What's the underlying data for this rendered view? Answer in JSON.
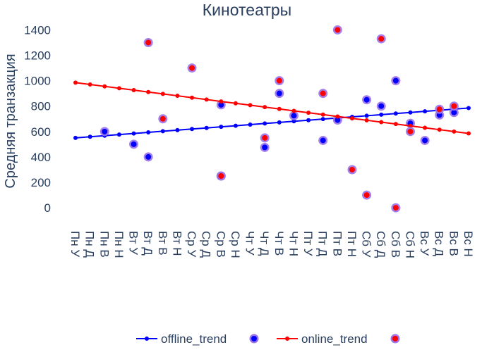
{
  "chart_data": {
    "type": "scatter",
    "title": "Кинотеатры",
    "ylabel": "Средняя транзакция",
    "xlabel": "",
    "ylim": [
      -160,
      1480
    ],
    "y_ticks": [
      0,
      200,
      400,
      600,
      800,
      1000,
      1200,
      1400
    ],
    "categories": [
      "Пн У",
      "Пн Д",
      "Пн В",
      "Пн Н",
      "Вт У",
      "Вт Д",
      "Вт В",
      "Вт Н",
      "Ср У",
      "Ср Д",
      "Ср В",
      "Ср Н",
      "Чт У",
      "Чт Д",
      "Чт В",
      "Чт Н",
      "Пт У",
      "Пт Д",
      "Пт В",
      "Пт Н",
      "Сб У",
      "Сб Д",
      "Сб В",
      "Сб Н",
      "Вс У",
      "Вс Д",
      "Вс В",
      "Вс Н"
    ],
    "grid": false,
    "legend_position": "bottom",
    "series": [
      {
        "name": "offline_trend",
        "kind": "line",
        "color": "#0000ff",
        "start": 550,
        "end": 785
      },
      {
        "name": "",
        "kind": "markers",
        "fill": "#0000ff",
        "ring": "#9b72e8",
        "points": [
          {
            "x": "Пн В",
            "y": 600
          },
          {
            "x": "Вт У",
            "y": 500
          },
          {
            "x": "Вт Д",
            "y": 400
          },
          {
            "x": "Ср В",
            "y": 810
          },
          {
            "x": "Ср В",
            "y": 250
          },
          {
            "x": "Чт Д",
            "y": 475
          },
          {
            "x": "Чт В",
            "y": 900
          },
          {
            "x": "Чт Н",
            "y": 725
          },
          {
            "x": "Пт Д",
            "y": 530
          },
          {
            "x": "Пт В",
            "y": 690
          },
          {
            "x": "Сб У",
            "y": 850
          },
          {
            "x": "Сб Д",
            "y": 800
          },
          {
            "x": "Сб В",
            "y": 1000
          },
          {
            "x": "Сб Н",
            "y": 665
          },
          {
            "x": "Вс У",
            "y": 530
          },
          {
            "x": "Вс Д",
            "y": 730
          },
          {
            "x": "Вс В",
            "y": 750
          }
        ]
      },
      {
        "name": "online_trend",
        "kind": "line",
        "color": "#ff0000",
        "start": 985,
        "end": 585
      },
      {
        "name": "",
        "kind": "markers",
        "fill": "#ff0000",
        "ring": "#9b72e8",
        "points": [
          {
            "x": "Вт Д",
            "y": 1300
          },
          {
            "x": "Вт В",
            "y": 700
          },
          {
            "x": "Ср У",
            "y": 1100
          },
          {
            "x": "Ср В",
            "y": 250
          },
          {
            "x": "Чт Д",
            "y": 550
          },
          {
            "x": "Чт В",
            "y": 1000
          },
          {
            "x": "Пт Д",
            "y": 900
          },
          {
            "x": "Пт В",
            "y": 1400
          },
          {
            "x": "Пт Н",
            "y": 300
          },
          {
            "x": "Сб У",
            "y": 100
          },
          {
            "x": "Сб Д",
            "y": 1330
          },
          {
            "x": "Сб В",
            "y": 0
          },
          {
            "x": "Сб Н",
            "y": 600
          },
          {
            "x": "Вс Д",
            "y": 775
          },
          {
            "x": "Вс В",
            "y": 800
          }
        ]
      }
    ]
  }
}
